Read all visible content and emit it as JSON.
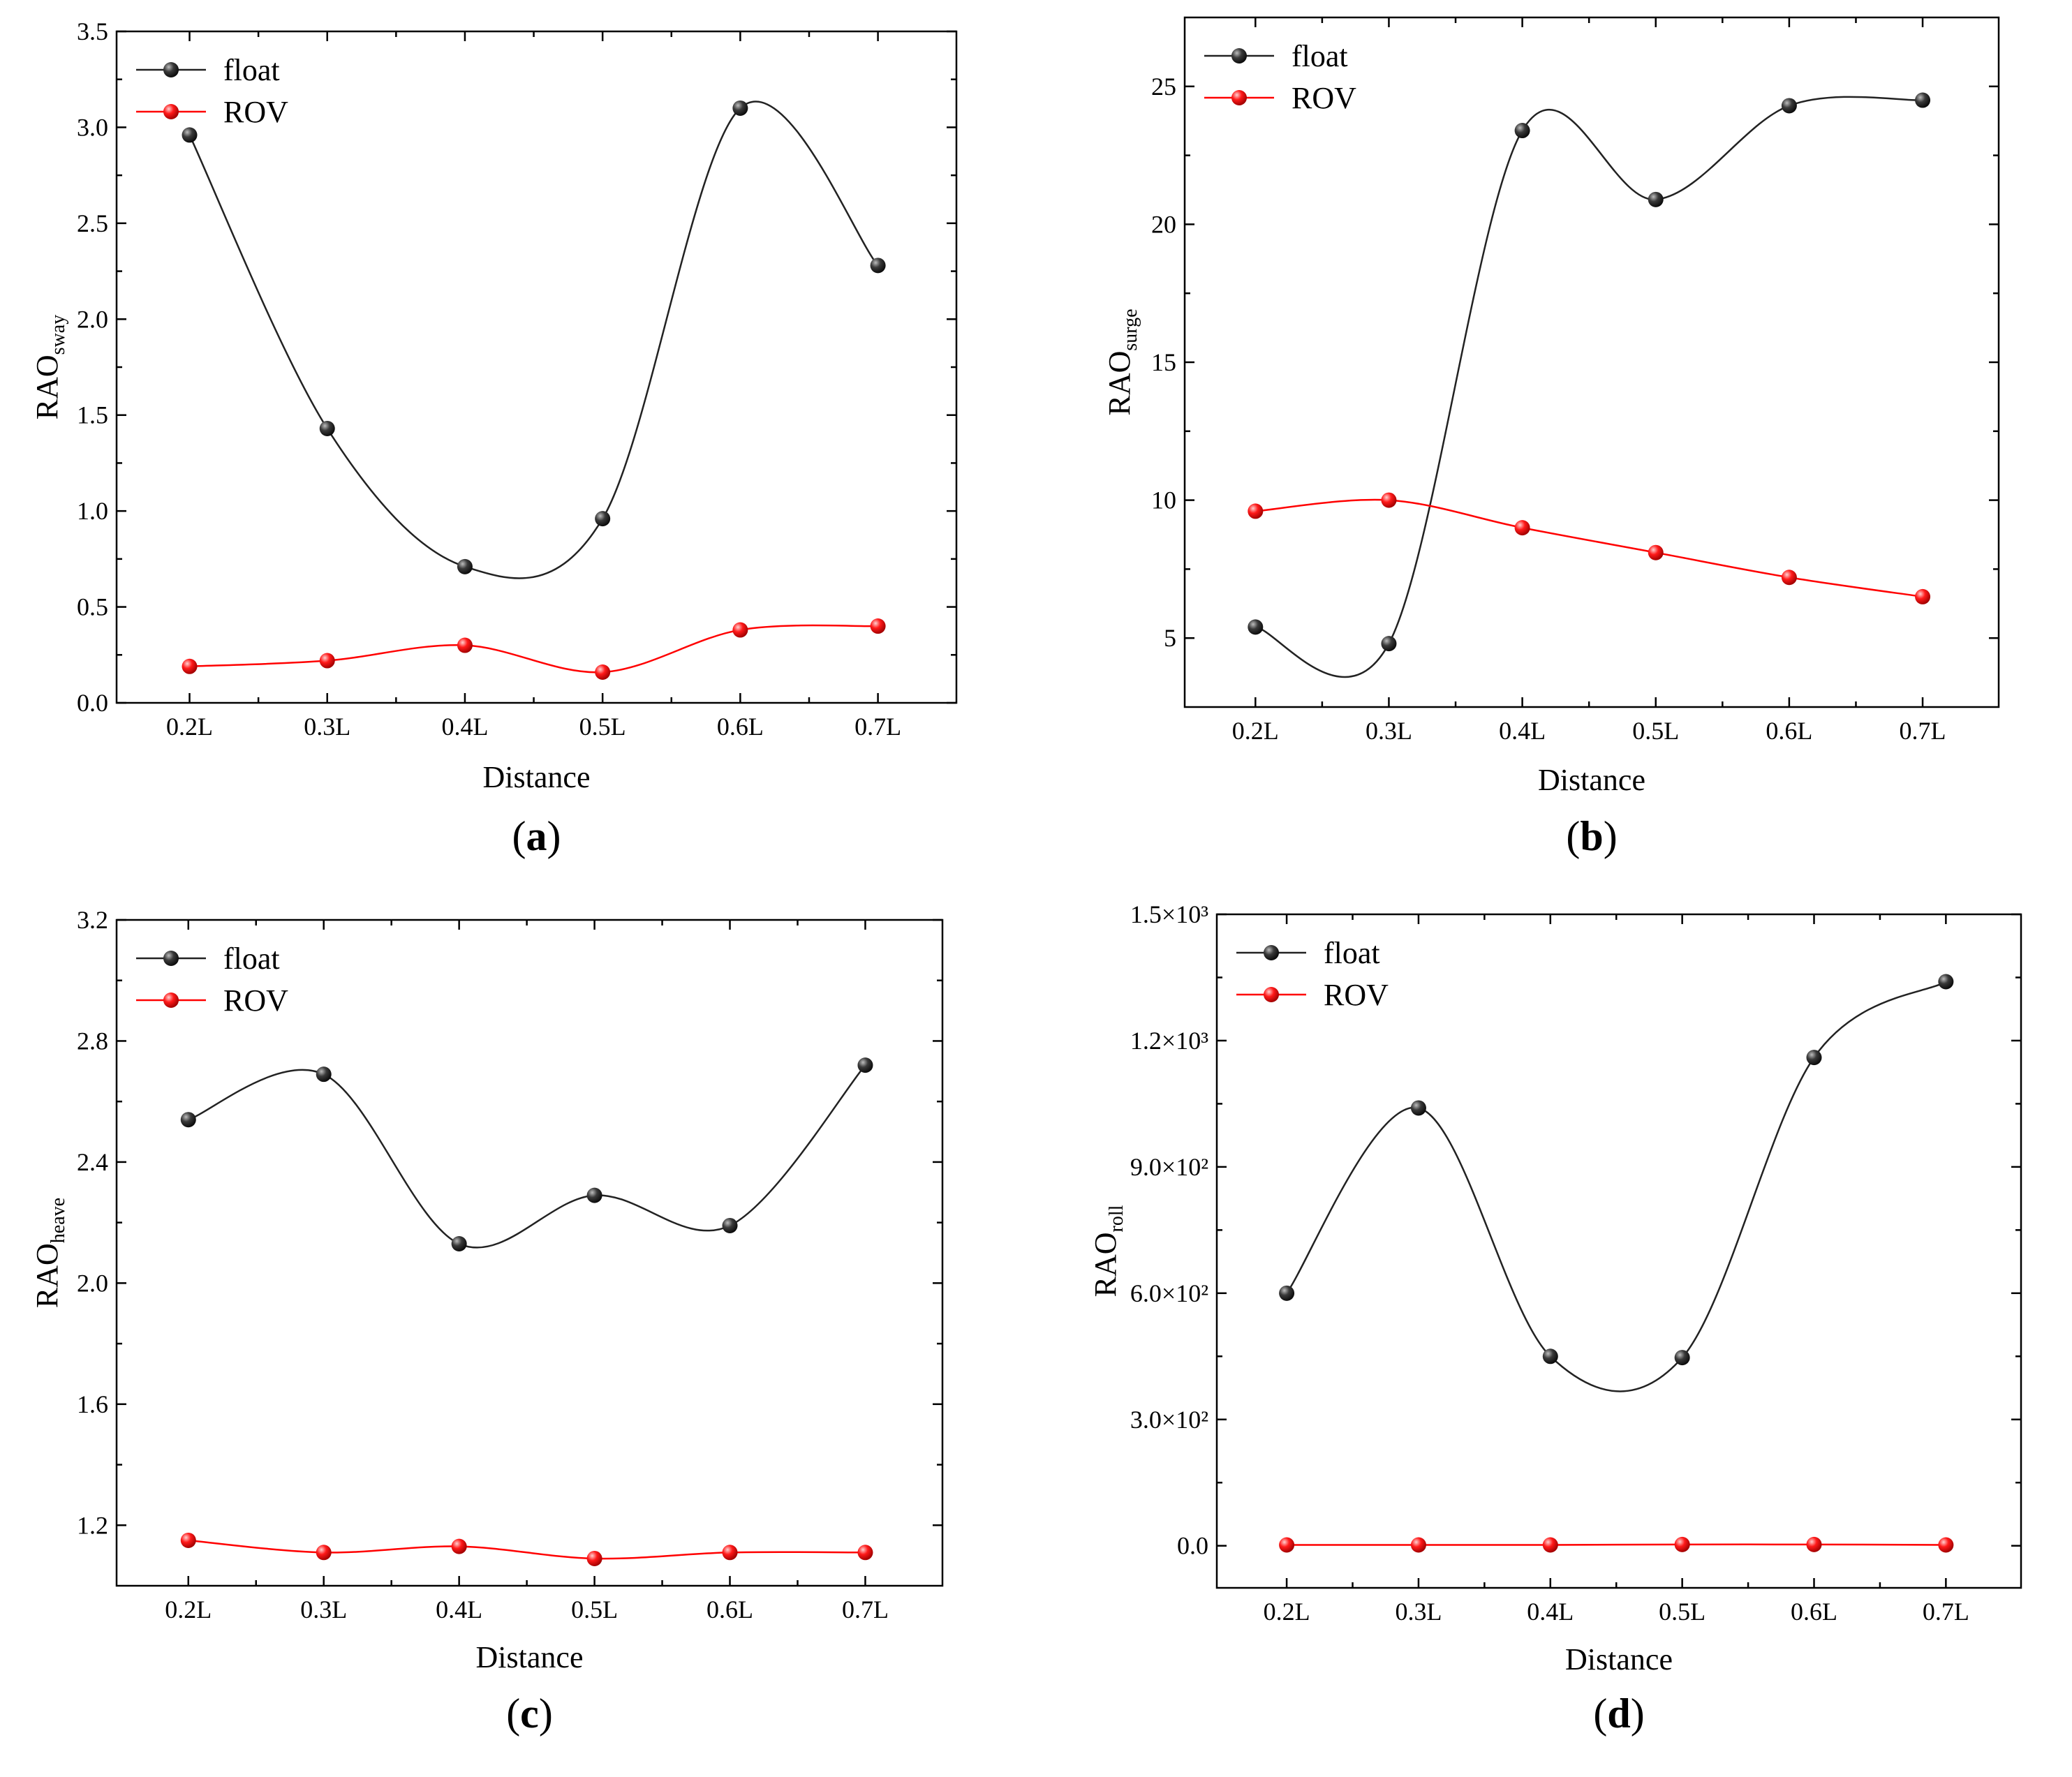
{
  "chart_data": [
    {
      "type": "line",
      "panel": "a",
      "title": "",
      "xlabel": "Distance",
      "ylabel": "RAO",
      "ylabel_sub": "sway",
      "categories": [
        "0.2L",
        "0.3L",
        "0.4L",
        "0.5L",
        "0.6L",
        "0.7L"
      ],
      "ylim": [
        0,
        3.5
      ],
      "yticks": [
        0.0,
        0.5,
        1.0,
        1.5,
        2.0,
        2.5,
        3.0,
        3.5
      ],
      "ytick_labels": [
        "0.0",
        "0.5",
        "1.0",
        "1.5",
        "2.0",
        "2.5",
        "3.0",
        "3.5"
      ],
      "legend": "top-left",
      "series": [
        {
          "name": "float",
          "color": "#222222",
          "values": [
            2.96,
            1.43,
            0.71,
            0.96,
            3.1,
            2.28
          ]
        },
        {
          "name": "ROV",
          "color": "#ff0000",
          "values": [
            0.19,
            0.22,
            0.3,
            0.16,
            0.38,
            0.4
          ]
        }
      ]
    },
    {
      "type": "line",
      "panel": "b",
      "title": "",
      "xlabel": "Distance",
      "ylabel": "RAO",
      "ylabel_sub": "surge",
      "categories": [
        "0.2L",
        "0.3L",
        "0.4L",
        "0.5L",
        "0.6L",
        "0.7L"
      ],
      "ylim": [
        2.5,
        27.5
      ],
      "yticks": [
        5,
        10,
        15,
        20,
        25
      ],
      "ytick_labels": [
        "5",
        "10",
        "15",
        "20",
        "25"
      ],
      "legend": "top-left",
      "series": [
        {
          "name": "float",
          "color": "#222222",
          "values": [
            5.4,
            4.8,
            23.4,
            20.9,
            24.3,
            24.5
          ]
        },
        {
          "name": "ROV",
          "color": "#ff0000",
          "values": [
            9.6,
            10.0,
            9.0,
            8.1,
            7.2,
            6.5
          ]
        }
      ]
    },
    {
      "type": "line",
      "panel": "c",
      "title": "",
      "xlabel": "Distance",
      "ylabel": "RAO",
      "ylabel_sub": "heave",
      "categories": [
        "0.2L",
        "0.3L",
        "0.4L",
        "0.5L",
        "0.6L",
        "0.7L"
      ],
      "ylim": [
        1.0,
        3.2
      ],
      "yticks": [
        1.2,
        1.6,
        2.0,
        2.4,
        2.8,
        3.2
      ],
      "ytick_labels": [
        "1.2",
        "1.6",
        "2.0",
        "2.4",
        "2.8",
        "3.2"
      ],
      "legend": "top-left",
      "series": [
        {
          "name": "float",
          "color": "#222222",
          "values": [
            2.54,
            2.69,
            2.13,
            2.29,
            2.19,
            2.72
          ]
        },
        {
          "name": "ROV",
          "color": "#ff0000",
          "values": [
            1.15,
            1.11,
            1.13,
            1.09,
            1.11,
            1.11
          ]
        }
      ]
    },
    {
      "type": "line",
      "panel": "d",
      "title": "",
      "xlabel": "Distance",
      "ylabel": "RAO",
      "ylabel_sub": "roll",
      "categories": [
        "0.2L",
        "0.3L",
        "0.4L",
        "0.5L",
        "0.6L",
        "0.7L"
      ],
      "ylim": [
        -100,
        1500
      ],
      "yticks": [
        0,
        300,
        600,
        900,
        1200,
        1500
      ],
      "ytick_labels": [
        "0.0",
        "3.0×10²",
        "6.0×10²",
        "9.0×10²",
        "1.2×10³",
        "1.5×10³"
      ],
      "legend": "top-left",
      "series": [
        {
          "name": "float",
          "color": "#222222",
          "values": [
            600,
            1040,
            450,
            447,
            1160,
            1340
          ]
        },
        {
          "name": "ROV",
          "color": "#ff0000",
          "values": [
            2,
            2,
            2,
            3,
            3,
            2
          ]
        }
      ]
    }
  ],
  "panel_labels": [
    "a",
    "b",
    "c",
    "d"
  ]
}
